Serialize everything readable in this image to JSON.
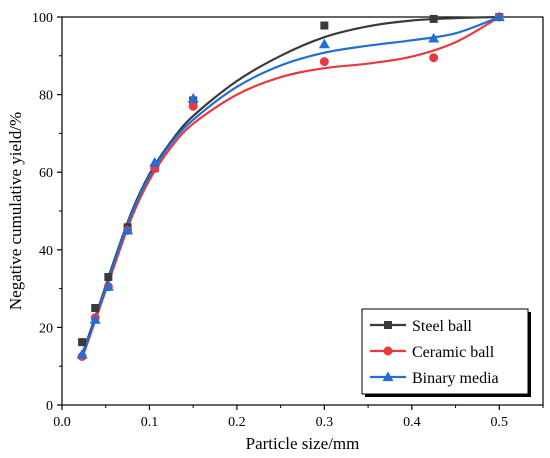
{
  "chart_data": {
    "type": "scatter",
    "xlabel": "Particle size/mm",
    "ylabel": "Negative cumulative yield/%",
    "xlim": [
      0,
      0.55
    ],
    "ylim": [
      0,
      100
    ],
    "xticks": [
      "0.0",
      "0.1",
      "0.2",
      "0.3",
      "0.4",
      "0.5"
    ],
    "xtick_values": [
      0,
      0.1,
      0.2,
      0.3,
      0.4,
      0.5
    ],
    "yticks": [
      "0",
      "20",
      "40",
      "60",
      "80",
      "100"
    ],
    "ytick_values": [
      0,
      20,
      40,
      60,
      80,
      100
    ],
    "grid": false,
    "legend_position": "bottom-right",
    "series": [
      {
        "name": "Steel ball",
        "color": "#3a3a3a",
        "marker": "square",
        "points": [
          [
            0.023,
            16.2
          ],
          [
            0.038,
            25
          ],
          [
            0.053,
            33
          ],
          [
            0.075,
            45.8
          ],
          [
            0.106,
            61
          ],
          [
            0.15,
            78.5
          ],
          [
            0.3,
            97.8
          ],
          [
            0.425,
            99.5
          ],
          [
            0.5,
            100
          ]
        ],
        "fit": [
          [
            0.023,
            13
          ],
          [
            0.04,
            24
          ],
          [
            0.06,
            37.5
          ],
          [
            0.08,
            50
          ],
          [
            0.1,
            59.5
          ],
          [
            0.125,
            68
          ],
          [
            0.15,
            74.5
          ],
          [
            0.2,
            83.5
          ],
          [
            0.25,
            90
          ],
          [
            0.3,
            94.8
          ],
          [
            0.35,
            97.6
          ],
          [
            0.4,
            99.1
          ],
          [
            0.45,
            99.7
          ],
          [
            0.5,
            100
          ]
        ]
      },
      {
        "name": "Ceramic ball",
        "color": "#e8393f",
        "marker": "circle",
        "points": [
          [
            0.023,
            12.5
          ],
          [
            0.038,
            22.5
          ],
          [
            0.053,
            30.5
          ],
          [
            0.075,
            45
          ],
          [
            0.106,
            61
          ],
          [
            0.15,
            77
          ],
          [
            0.3,
            88.5
          ],
          [
            0.425,
            89.5
          ],
          [
            0.5,
            100
          ]
        ],
        "fit": [
          [
            0.023,
            12
          ],
          [
            0.04,
            23
          ],
          [
            0.06,
            36
          ],
          [
            0.08,
            48.5
          ],
          [
            0.1,
            58
          ],
          [
            0.125,
            66.5
          ],
          [
            0.15,
            72.5
          ],
          [
            0.2,
            80
          ],
          [
            0.25,
            84.5
          ],
          [
            0.3,
            86.8
          ],
          [
            0.35,
            88
          ],
          [
            0.4,
            89.8
          ],
          [
            0.45,
            93.5
          ],
          [
            0.5,
            100
          ]
        ]
      },
      {
        "name": "Binary media",
        "color": "#1f6fd6",
        "marker": "triangle",
        "points": [
          [
            0.023,
            13
          ],
          [
            0.038,
            22
          ],
          [
            0.053,
            30.5
          ],
          [
            0.075,
            45
          ],
          [
            0.106,
            62.5
          ],
          [
            0.15,
            79
          ],
          [
            0.3,
            93
          ],
          [
            0.425,
            94.5
          ],
          [
            0.5,
            100
          ]
        ],
        "fit": [
          [
            0.023,
            12.5
          ],
          [
            0.04,
            23.5
          ],
          [
            0.06,
            37
          ],
          [
            0.08,
            49.5
          ],
          [
            0.1,
            59
          ],
          [
            0.125,
            67.5
          ],
          [
            0.15,
            73.5
          ],
          [
            0.2,
            82
          ],
          [
            0.25,
            87.5
          ],
          [
            0.3,
            90.8
          ],
          [
            0.35,
            92.6
          ],
          [
            0.4,
            94
          ],
          [
            0.45,
            95.8
          ],
          [
            0.5,
            100
          ]
        ]
      }
    ]
  }
}
